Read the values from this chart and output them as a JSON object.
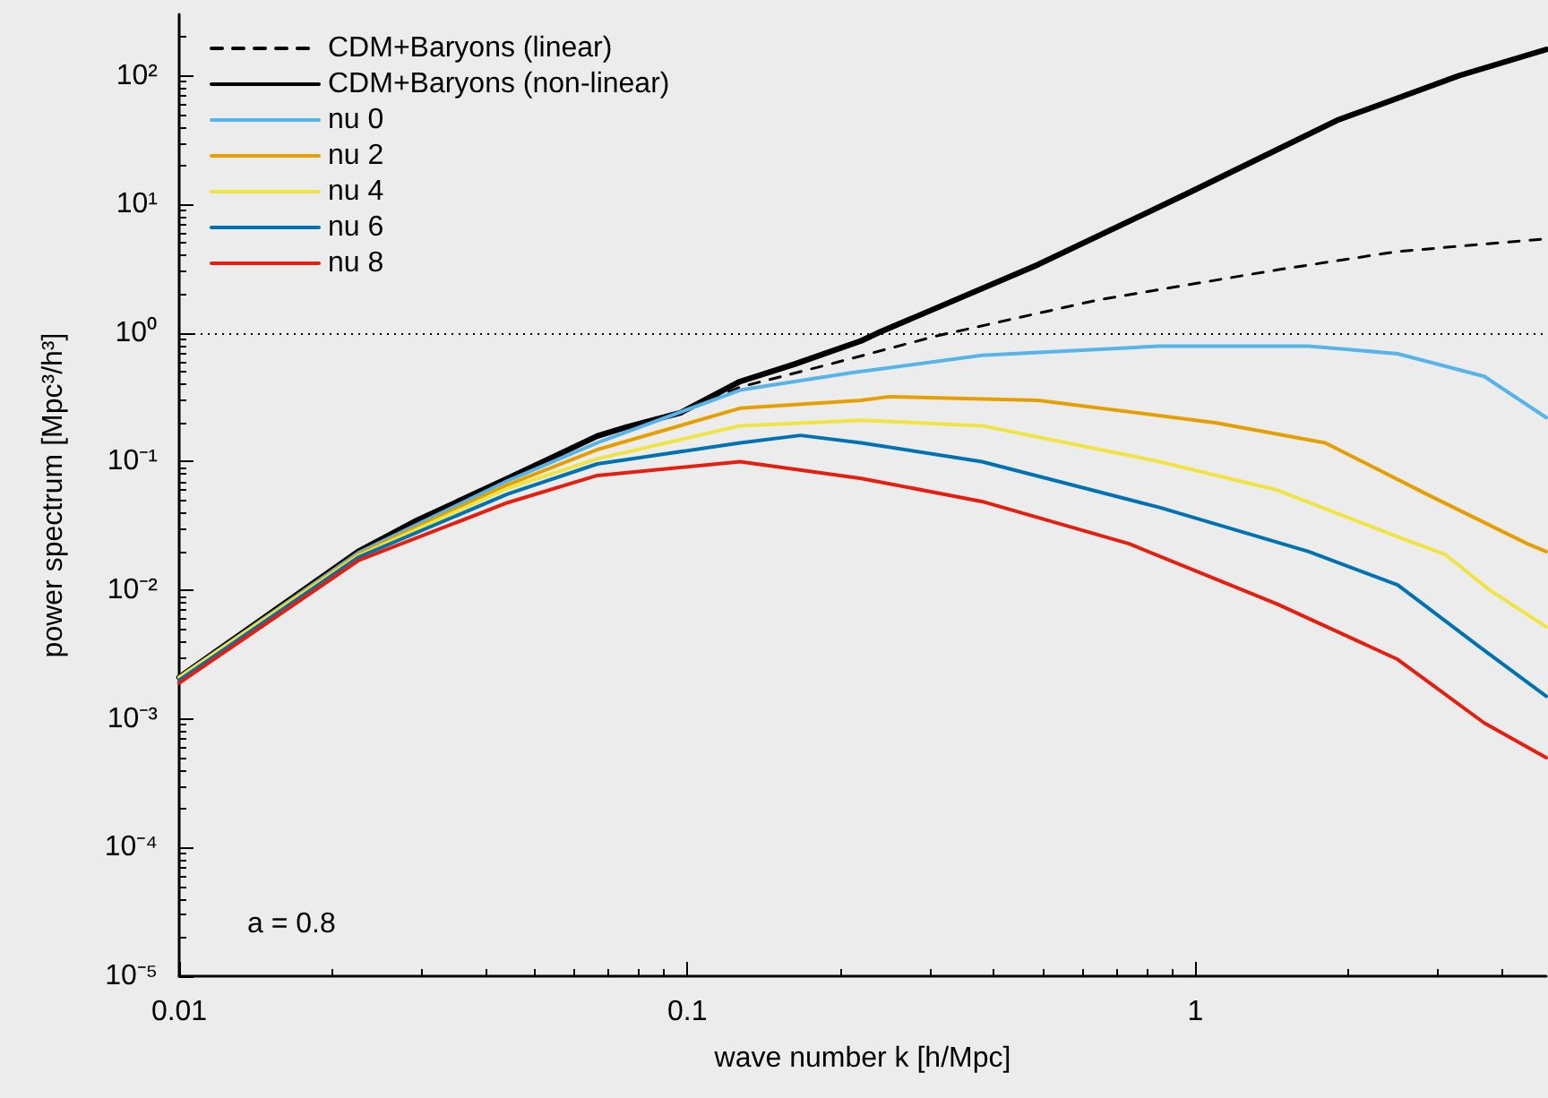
{
  "chart_data": {
    "type": "line",
    "xlabel": "wave number k [h/Mpc]",
    "ylabel": "power spectrum [Mpc³/h³]",
    "log": "xy",
    "grid": false,
    "legend": "top left",
    "marker": "none",
    "xlim": [
      0.01,
      4.9
    ],
    "xticks": [
      0.01,
      0.1,
      1
    ],
    "ylim": [
      1e-05,
      300
    ],
    "yticks": [
      {
        "value": 1e-05,
        "label": "10⁻⁵"
      },
      {
        "value": 0.0001,
        "label": "10⁻⁴"
      },
      {
        "value": 0.001,
        "label": "10⁻³"
      },
      {
        "value": 0.01,
        "label": "10⁻²"
      },
      {
        "value": 0.1,
        "label": "10⁻¹"
      },
      {
        "value": 1,
        "label": "10⁰"
      },
      {
        "value": 10,
        "label": "10¹"
      },
      {
        "value": 100,
        "label": "10²"
      }
    ],
    "ref_lines": [
      {
        "axis": "y",
        "value": 1,
        "line_style": "dotted",
        "color": "#000000"
      }
    ],
    "annotations": [
      "a = 0.8"
    ],
    "series": [
      {
        "name": "CDM+Baryons (linear)",
        "color": "#000000",
        "line_style": "dashed",
        "x": [
          0.01,
          0.0225,
          0.0443,
          0.0665,
          0.097,
          0.127,
          0.19,
          0.31,
          0.64,
          1.45,
          2.5,
          4.9
        ],
        "values": [
          0.0021,
          0.02,
          0.074,
          0.158,
          0.24,
          0.38,
          0.57,
          0.95,
          1.8,
          3.1,
          4.3,
          5.4
        ]
      },
      {
        "name": "CDM+Baryons (non-linear)",
        "color": "#000000",
        "line_style": "solid",
        "x": [
          0.01,
          0.0225,
          0.0294,
          0.0443,
          0.0665,
          0.076,
          0.097,
          0.127,
          0.162,
          0.22,
          0.237,
          0.49,
          0.97,
          1.9,
          3.3,
          4.9
        ],
        "values": [
          0.0021,
          0.02,
          0.035,
          0.074,
          0.158,
          0.186,
          0.24,
          0.42,
          0.57,
          0.87,
          1.0,
          3.4,
          12.3,
          45,
          100,
          160
        ]
      },
      {
        "name": "nu 0",
        "color": "#56b4e9",
        "line_style": "solid",
        "x": [
          0.01,
          0.0225,
          0.0443,
          0.0665,
          0.127,
          0.21,
          0.38,
          0.85,
          1.67,
          2.5,
          3.7,
          4.9
        ],
        "values": [
          0.0021,
          0.0195,
          0.071,
          0.14,
          0.36,
          0.49,
          0.67,
          0.79,
          0.79,
          0.69,
          0.46,
          0.22
        ]
      },
      {
        "name": "nu 2",
        "color": "#e69f00",
        "line_style": "solid",
        "x": [
          0.01,
          0.0225,
          0.0443,
          0.0665,
          0.127,
          0.22,
          0.25,
          0.49,
          1.1,
          1.8,
          2.9,
          4.5,
          4.9
        ],
        "values": [
          0.0021,
          0.019,
          0.066,
          0.124,
          0.26,
          0.3,
          0.32,
          0.3,
          0.2,
          0.14,
          0.054,
          0.023,
          0.02
        ]
      },
      {
        "name": "nu 4",
        "color": "#f0e442",
        "line_style": "solid",
        "x": [
          0.01,
          0.0225,
          0.0443,
          0.0665,
          0.127,
          0.22,
          0.38,
          0.85,
          1.45,
          2.5,
          3.1,
          3.8,
          4.9
        ],
        "values": [
          0.0021,
          0.0185,
          0.062,
          0.105,
          0.19,
          0.21,
          0.19,
          0.1,
          0.06,
          0.026,
          0.019,
          0.01,
          0.0052
        ]
      },
      {
        "name": "nu 6",
        "color": "#0072b2",
        "line_style": "solid",
        "x": [
          0.01,
          0.0225,
          0.0443,
          0.0665,
          0.127,
          0.167,
          0.22,
          0.38,
          0.85,
          1.67,
          2.5,
          3.6,
          4.9
        ],
        "values": [
          0.002,
          0.018,
          0.056,
          0.096,
          0.14,
          0.16,
          0.14,
          0.1,
          0.044,
          0.02,
          0.011,
          0.0037,
          0.0015
        ]
      },
      {
        "name": "nu 8",
        "color": "#e51e10",
        "line_style": "solid",
        "x": [
          0.01,
          0.0225,
          0.0443,
          0.0665,
          0.127,
          0.22,
          0.38,
          0.74,
          1.45,
          2.5,
          3.7,
          4.9
        ],
        "values": [
          0.0019,
          0.017,
          0.048,
          0.078,
          0.1,
          0.074,
          0.049,
          0.023,
          0.0078,
          0.0029,
          0.00093,
          0.0005
        ]
      }
    ]
  }
}
